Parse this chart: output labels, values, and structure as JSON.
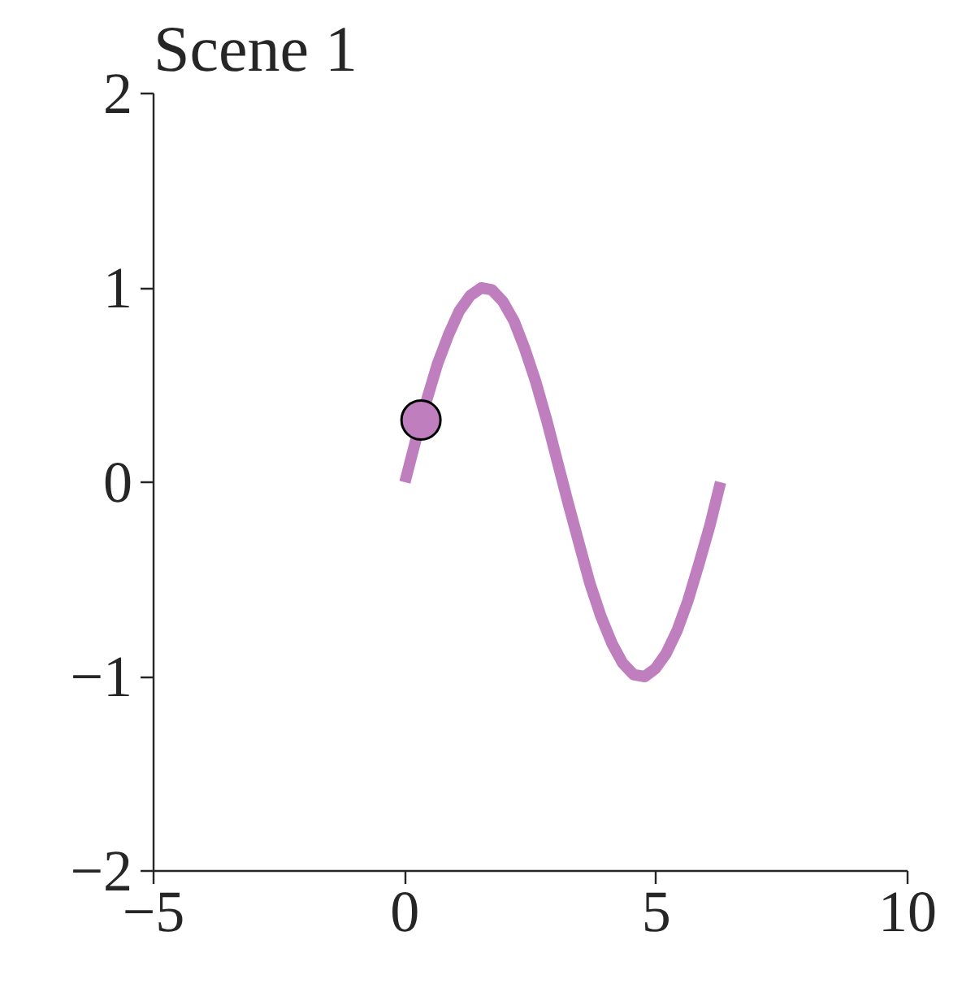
{
  "chart_data": {
    "type": "line",
    "title": "Scene 1",
    "xlim": [
      -5,
      10
    ],
    "ylim": [
      -2,
      2
    ],
    "xticks": [
      -5,
      0,
      5,
      10
    ],
    "yticks": [
      -2,
      -1,
      0,
      1,
      2
    ],
    "grid": false,
    "series": [
      {
        "color": "#bf7fbf",
        "line_style": "solid",
        "marker": "none",
        "x": [
          0,
          0.22,
          0.43,
          0.65,
          0.87,
          1.08,
          1.3,
          1.52,
          1.73,
          1.95,
          2.17,
          2.38,
          2.6,
          2.82,
          3.03,
          3.25,
          3.47,
          3.68,
          3.9,
          4.12,
          4.33,
          4.55,
          4.77,
          4.98,
          5.2,
          5.42,
          5.63,
          5.85,
          6.07,
          6.28
        ],
        "values": [
          0,
          0.22,
          0.42,
          0.61,
          0.76,
          0.88,
          0.96,
          1.0,
          0.99,
          0.93,
          0.83,
          0.69,
          0.52,
          0.32,
          0.11,
          -0.11,
          -0.32,
          -0.52,
          -0.69,
          -0.83,
          -0.93,
          -0.99,
          -1.0,
          -0.96,
          -0.88,
          -0.76,
          -0.61,
          -0.42,
          -0.22,
          0
        ]
      },
      {
        "type": "scatter",
        "color": "#bf7fbf",
        "marker": "circle",
        "x": [
          0.32
        ],
        "values": [
          0.32
        ]
      }
    ]
  }
}
